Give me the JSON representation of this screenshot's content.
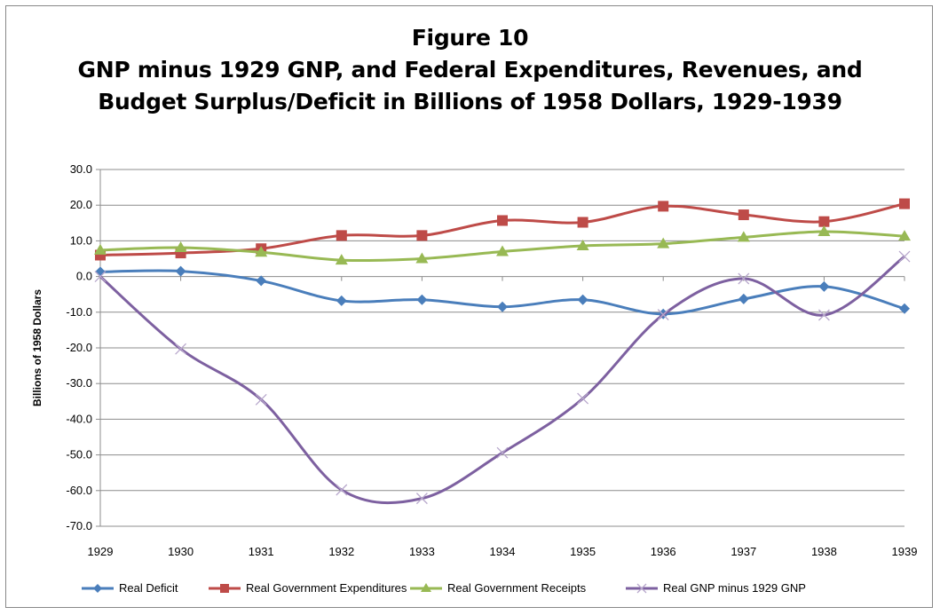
{
  "chart_data": {
    "type": "line",
    "title": [
      "Figure  10",
      "GNP minus 1929 GNP, and Federal Expenditures, Revenues, and",
      "Budget Surplus/Deficit in Billions of 1958 Dollars, 1929-1939"
    ],
    "xlabel": "",
    "ylabel": "Billions of 1958 Dollars",
    "ylim": [
      -70,
      30
    ],
    "yticks": [
      30,
      20,
      10,
      0,
      -10,
      -20,
      -30,
      -40,
      -50,
      -60,
      -70
    ],
    "ytick_labels": [
      "30.0",
      "20.0",
      "10.0",
      "0.0",
      "-10.0",
      "-20.0",
      "-30.0",
      "-40.0",
      "-50.0",
      "-60.0",
      "-70.0"
    ],
    "categories": [
      "1929",
      "1930",
      "1931",
      "1932",
      "1933",
      "1934",
      "1935",
      "1936",
      "1937",
      "1938",
      "1939"
    ],
    "grid": true,
    "legend_position": "bottom",
    "series": [
      {
        "name": "Real Deficit",
        "color": "#4a7ebb",
        "marker": "diamond",
        "values": [
          1.3,
          1.5,
          -1.2,
          -6.8,
          -6.5,
          -8.5,
          -6.5,
          -10.5,
          -6.3,
          -2.8,
          -9.0
        ]
      },
      {
        "name": "Real Government Expenditures",
        "color": "#be4b48",
        "marker": "square",
        "values": [
          6.0,
          6.6,
          7.8,
          11.5,
          11.5,
          15.7,
          15.2,
          19.7,
          17.3,
          15.4,
          20.4
        ]
      },
      {
        "name": "Real Government Receipts",
        "color": "#98b954",
        "marker": "triangle",
        "values": [
          7.4,
          8.1,
          6.8,
          4.6,
          5.0,
          7.0,
          8.6,
          9.2,
          11.0,
          12.6,
          11.3
        ]
      },
      {
        "name": "Real GNP minus 1929 GNP",
        "color": "#7d60a0",
        "marker": "x",
        "values": [
          0.0,
          -20.3,
          -34.5,
          -59.8,
          -62.2,
          -49.4,
          -34.2,
          -10.7,
          -0.6,
          -10.8,
          5.6
        ]
      }
    ]
  }
}
